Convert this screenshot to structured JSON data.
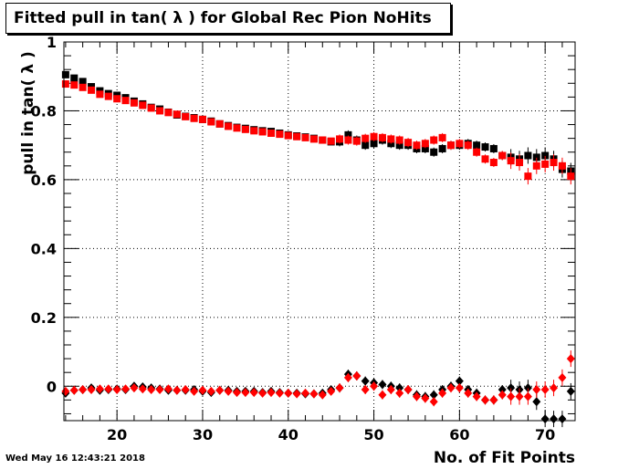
{
  "chart_data": {
    "type": "scatter",
    "title": "Fitted pull in tan( λ ) for Global Rec Pion NoHits",
    "xlabel": "No. of Fit Points",
    "ylabel": "pull in tan( λ )",
    "xlim": [
      13.8,
      73.5
    ],
    "ylim": [
      -0.1,
      1.0
    ],
    "x_ticks": [
      "20",
      "30",
      "40",
      "50",
      "60",
      "70"
    ],
    "y_ticks": [
      "0",
      "0.2",
      "0.4",
      "0.6",
      "0.8",
      "1"
    ],
    "grid": true,
    "series": [
      {
        "marker": "square",
        "color": "#000000",
        "x": [
          14,
          15,
          16,
          17,
          18,
          19,
          20,
          21,
          22,
          23,
          24,
          25,
          26,
          27,
          28,
          29,
          30,
          31,
          32,
          33,
          34,
          35,
          36,
          37,
          38,
          39,
          40,
          41,
          42,
          43,
          44,
          45,
          46,
          47,
          48,
          49,
          50,
          51,
          52,
          53,
          54,
          55,
          56,
          57,
          58,
          59,
          60,
          61,
          62,
          63,
          64,
          65,
          66,
          67,
          68,
          69,
          70,
          71,
          72,
          73
        ],
        "y": [
          0.905,
          0.895,
          0.885,
          0.87,
          0.858,
          0.85,
          0.845,
          0.838,
          0.828,
          0.82,
          0.81,
          0.805,
          0.796,
          0.788,
          0.784,
          0.78,
          0.775,
          0.77,
          0.762,
          0.757,
          0.752,
          0.749,
          0.745,
          0.742,
          0.74,
          0.735,
          0.73,
          0.727,
          0.724,
          0.72,
          0.715,
          0.71,
          0.71,
          0.73,
          0.715,
          0.7,
          0.705,
          0.715,
          0.705,
          0.7,
          0.7,
          0.69,
          0.69,
          0.68,
          0.69,
          0.7,
          0.7,
          0.705,
          0.7,
          0.695,
          0.69,
          0.67,
          0.665,
          0.66,
          0.67,
          0.665,
          0.67,
          0.66,
          0.63,
          0.625
        ]
      },
      {
        "marker": "square",
        "color": "#ff0000",
        "x": [
          14,
          15,
          16,
          17,
          18,
          19,
          20,
          21,
          22,
          23,
          24,
          25,
          26,
          27,
          28,
          29,
          30,
          31,
          32,
          33,
          34,
          35,
          36,
          37,
          38,
          39,
          40,
          41,
          42,
          43,
          44,
          45,
          46,
          47,
          48,
          49,
          50,
          51,
          52,
          53,
          54,
          55,
          56,
          57,
          58,
          59,
          60,
          61,
          62,
          63,
          64,
          65,
          66,
          67,
          68,
          69,
          70,
          71,
          72,
          73
        ],
        "y": [
          0.878,
          0.875,
          0.868,
          0.86,
          0.848,
          0.842,
          0.835,
          0.83,
          0.823,
          0.816,
          0.808,
          0.8,
          0.795,
          0.79,
          0.783,
          0.778,
          0.775,
          0.768,
          0.762,
          0.755,
          0.75,
          0.746,
          0.742,
          0.739,
          0.735,
          0.732,
          0.728,
          0.725,
          0.722,
          0.718,
          0.715,
          0.712,
          0.718,
          0.715,
          0.712,
          0.72,
          0.725,
          0.722,
          0.718,
          0.715,
          0.708,
          0.7,
          0.705,
          0.715,
          0.722,
          0.7,
          0.705,
          0.7,
          0.68,
          0.66,
          0.65,
          0.67,
          0.655,
          0.65,
          0.61,
          0.64,
          0.645,
          0.65,
          0.64,
          0.61
        ]
      },
      {
        "marker": "diamond",
        "color": "#000000",
        "x": [
          14,
          15,
          16,
          17,
          18,
          19,
          20,
          21,
          22,
          23,
          24,
          25,
          26,
          27,
          28,
          29,
          30,
          31,
          32,
          33,
          34,
          35,
          36,
          37,
          38,
          39,
          40,
          41,
          42,
          43,
          44,
          45,
          46,
          47,
          48,
          49,
          50,
          51,
          52,
          53,
          54,
          55,
          56,
          57,
          58,
          59,
          60,
          61,
          62,
          63,
          64,
          65,
          66,
          67,
          68,
          69,
          70,
          71,
          72,
          73
        ],
        "y": [
          -0.02,
          -0.012,
          -0.01,
          -0.005,
          -0.012,
          -0.01,
          -0.008,
          -0.01,
          0.0,
          -0.002,
          -0.005,
          -0.008,
          -0.012,
          -0.012,
          -0.012,
          -0.01,
          -0.015,
          -0.018,
          -0.012,
          -0.012,
          -0.015,
          -0.015,
          -0.015,
          -0.018,
          -0.015,
          -0.018,
          -0.02,
          -0.02,
          -0.022,
          -0.022,
          -0.02,
          -0.01,
          -0.005,
          0.035,
          0.03,
          0.015,
          0.01,
          0.005,
          0.0,
          -0.005,
          -0.01,
          -0.025,
          -0.03,
          -0.025,
          -0.01,
          0.0,
          0.015,
          -0.01,
          -0.02,
          -0.04,
          -0.04,
          -0.01,
          -0.005,
          -0.01,
          -0.005,
          -0.045,
          -0.095,
          -0.095,
          -0.095,
          -0.015
        ]
      },
      {
        "marker": "diamond",
        "color": "#ff0000",
        "x": [
          14,
          15,
          16,
          17,
          18,
          19,
          20,
          21,
          22,
          23,
          24,
          25,
          26,
          27,
          28,
          29,
          30,
          31,
          32,
          33,
          34,
          35,
          36,
          37,
          38,
          39,
          40,
          41,
          42,
          43,
          44,
          45,
          46,
          47,
          48,
          49,
          50,
          51,
          52,
          53,
          54,
          55,
          56,
          57,
          58,
          59,
          60,
          61,
          62,
          63,
          64,
          65,
          66,
          67,
          68,
          69,
          70,
          71,
          72,
          73
        ],
        "y": [
          -0.015,
          -0.012,
          -0.01,
          -0.01,
          -0.008,
          -0.008,
          -0.01,
          -0.008,
          -0.005,
          -0.008,
          -0.01,
          -0.01,
          -0.008,
          -0.012,
          -0.01,
          -0.015,
          -0.012,
          -0.015,
          -0.012,
          -0.015,
          -0.018,
          -0.018,
          -0.018,
          -0.02,
          -0.018,
          -0.02,
          -0.02,
          -0.022,
          -0.02,
          -0.022,
          -0.025,
          -0.015,
          -0.005,
          0.025,
          0.03,
          -0.01,
          0.0,
          -0.025,
          -0.01,
          -0.02,
          -0.01,
          -0.03,
          -0.035,
          -0.045,
          -0.02,
          -0.005,
          -0.005,
          -0.02,
          -0.03,
          -0.04,
          -0.04,
          -0.025,
          -0.03,
          -0.03,
          -0.03,
          -0.01,
          -0.01,
          -0.005,
          0.025,
          0.08
        ]
      }
    ]
  },
  "timestamp": "Wed May 16 12:43:21 2018",
  "colors": {
    "black": "#000000",
    "red": "#ff0000"
  }
}
